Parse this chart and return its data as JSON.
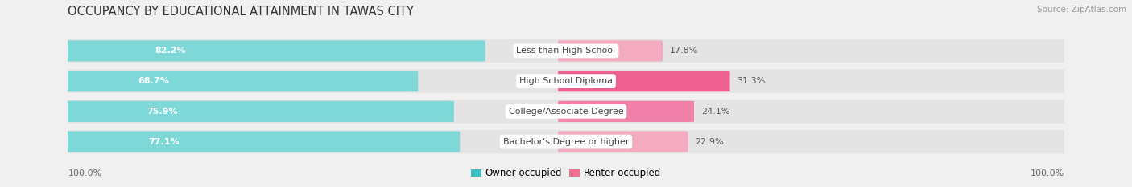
{
  "title": "OCCUPANCY BY EDUCATIONAL ATTAINMENT IN TAWAS CITY",
  "source": "Source: ZipAtlas.com",
  "categories": [
    "Less than High School",
    "High School Diploma",
    "College/Associate Degree",
    "Bachelor's Degree or higher"
  ],
  "owner_values": [
    82.2,
    68.7,
    75.9,
    77.1
  ],
  "renter_values": [
    17.8,
    31.3,
    24.1,
    22.9
  ],
  "owner_color_dark": "#3BBFBF",
  "owner_color_light": "#7ED8D8",
  "renter_color_row0": "#F4A0B8",
  "renter_color_row1": "#F06090",
  "renter_color_row2": "#F080A8",
  "renter_color_row3": "#F4A0B8",
  "renter_colors": [
    "#F4AABF",
    "#EE6090",
    "#F080A8",
    "#F4AABF"
  ],
  "background_color": "#F0F0F0",
  "row_bg_color": "#E8E8E8",
  "title_fontsize": 10.5,
  "source_fontsize": 7.5,
  "bar_label_fontsize": 8.0,
  "cat_label_fontsize": 8.0,
  "tick_fontsize": 8.0,
  "legend_fontsize": 8.5,
  "axis_label_left": "100.0%",
  "axis_label_right": "100.0%"
}
